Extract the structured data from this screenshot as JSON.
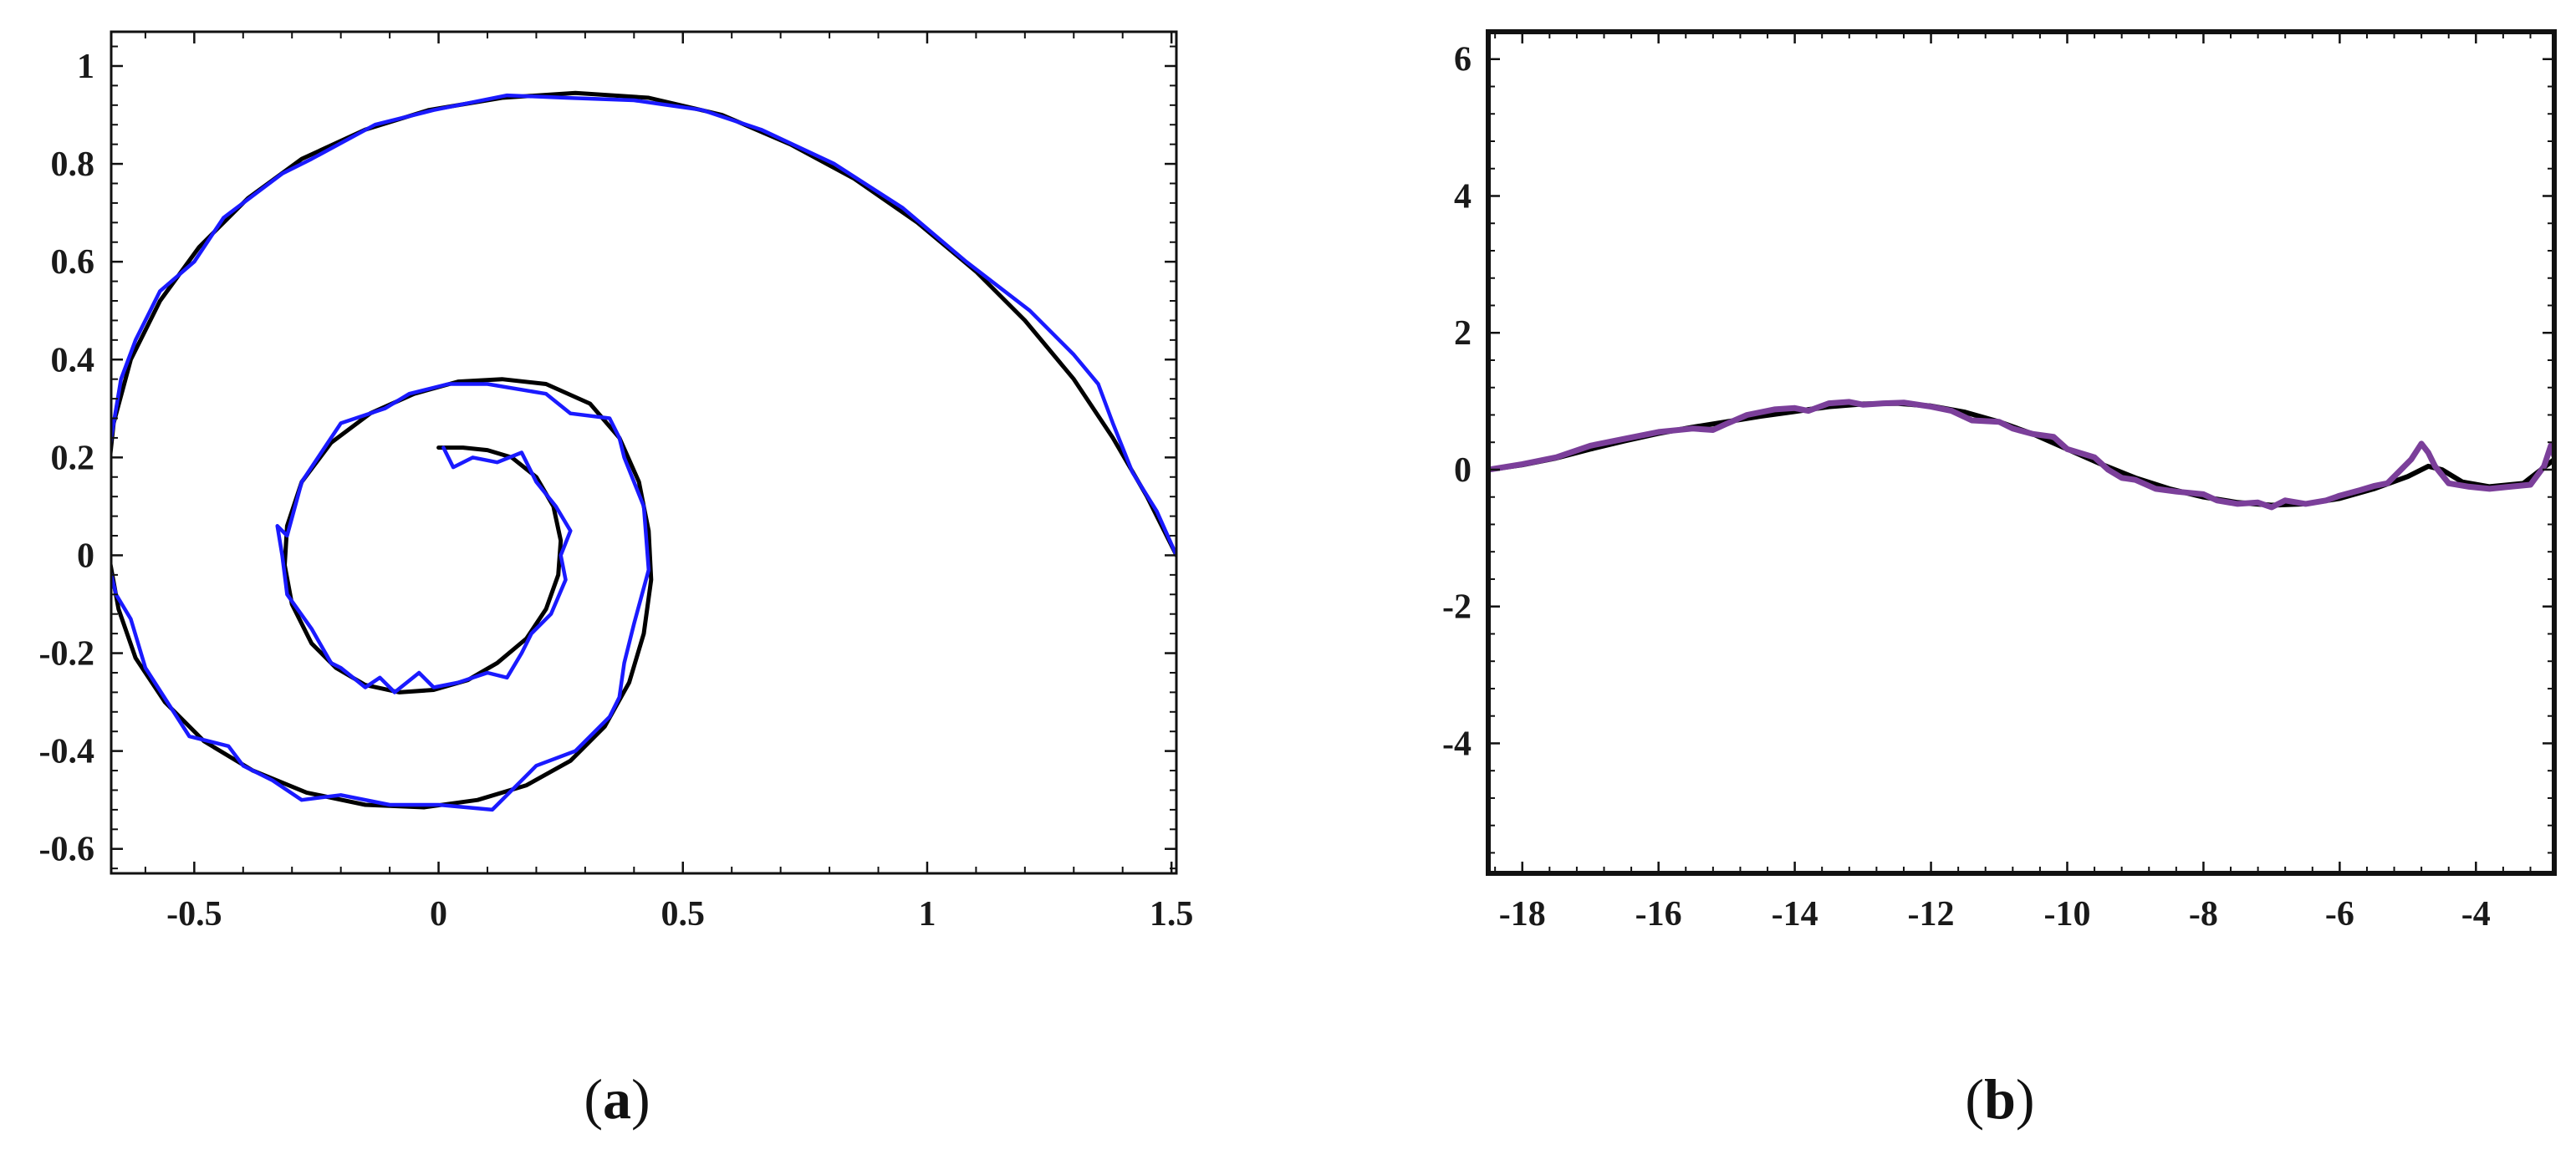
{
  "colors": {
    "axes": "#111111",
    "reference_curve": "#000000",
    "panel_a_noisy_curve": "#1a1aff",
    "panel_b_noisy_curve": "#7b3f9a",
    "background": "#ffffff"
  },
  "captions": {
    "a": "a",
    "b": "b",
    "open_paren": "(",
    "close_paren": ")"
  },
  "chart_data": [
    {
      "id": "a",
      "type": "line",
      "title": "",
      "xlabel": "",
      "ylabel": "",
      "xlim": [
        -0.67,
        1.51
      ],
      "ylim": [
        -0.65,
        1.07
      ],
      "x_ticks": [
        -0.5,
        0,
        0.5,
        1,
        1.5
      ],
      "x_tick_labels": [
        "-0.5",
        "0",
        "0.5",
        "1",
        "1.5"
      ],
      "y_ticks": [
        -0.6,
        -0.4,
        -0.2,
        0,
        0.2,
        0.4,
        0.6,
        0.8,
        1
      ],
      "y_tick_labels": [
        "-0.6",
        "-0.4",
        "-0.2",
        "0",
        "0.2",
        "0.4",
        "0.6",
        "0.8",
        "1"
      ],
      "grid": false,
      "legend": "none",
      "series": [
        {
          "style": "smooth black reference spiral",
          "points": [
            [
              1.51,
              0.0
            ],
            [
              1.45,
              0.12
            ],
            [
              1.38,
              0.24
            ],
            [
              1.3,
              0.36
            ],
            [
              1.2,
              0.48
            ],
            [
              1.1,
              0.58
            ],
            [
              0.98,
              0.68
            ],
            [
              0.85,
              0.77
            ],
            [
              0.72,
              0.84
            ],
            [
              0.58,
              0.9
            ],
            [
              0.43,
              0.935
            ],
            [
              0.28,
              0.945
            ],
            [
              0.13,
              0.935
            ],
            [
              -0.02,
              0.91
            ],
            [
              -0.15,
              0.87
            ],
            [
              -0.28,
              0.81
            ],
            [
              -0.39,
              0.73
            ],
            [
              -0.49,
              0.63
            ],
            [
              -0.57,
              0.52
            ],
            [
              -0.63,
              0.4
            ],
            [
              -0.665,
              0.27
            ],
            [
              -0.68,
              0.13
            ],
            [
              -0.675,
              0.0
            ],
            [
              -0.655,
              -0.11
            ],
            [
              -0.62,
              -0.21
            ],
            [
              -0.56,
              -0.3
            ],
            [
              -0.48,
              -0.38
            ],
            [
              -0.38,
              -0.44
            ],
            [
              -0.27,
              -0.485
            ],
            [
              -0.15,
              -0.51
            ],
            [
              -0.03,
              -0.515
            ],
            [
              0.08,
              -0.5
            ],
            [
              0.18,
              -0.47
            ],
            [
              0.27,
              -0.42
            ],
            [
              0.34,
              -0.35
            ],
            [
              0.39,
              -0.26
            ],
            [
              0.42,
              -0.16
            ],
            [
              0.435,
              -0.05
            ],
            [
              0.43,
              0.05
            ],
            [
              0.41,
              0.15
            ],
            [
              0.37,
              0.24
            ],
            [
              0.31,
              0.31
            ],
            [
              0.22,
              0.35
            ],
            [
              0.13,
              0.36
            ],
            [
              0.04,
              0.355
            ],
            [
              -0.05,
              0.33
            ],
            [
              -0.14,
              0.29
            ],
            [
              -0.22,
              0.23
            ],
            [
              -0.28,
              0.15
            ],
            [
              -0.31,
              0.06
            ],
            [
              -0.315,
              -0.02
            ],
            [
              -0.3,
              -0.1
            ],
            [
              -0.26,
              -0.18
            ],
            [
              -0.21,
              -0.23
            ],
            [
              -0.15,
              -0.265
            ],
            [
              -0.08,
              -0.28
            ],
            [
              -0.01,
              -0.275
            ],
            [
              0.06,
              -0.255
            ],
            [
              0.12,
              -0.22
            ],
            [
              0.18,
              -0.17
            ],
            [
              0.22,
              -0.11
            ],
            [
              0.245,
              -0.04
            ],
            [
              0.25,
              0.03
            ],
            [
              0.235,
              0.1
            ],
            [
              0.2,
              0.16
            ],
            [
              0.15,
              0.2
            ],
            [
              0.1,
              0.215
            ],
            [
              0.05,
              0.22
            ],
            [
              0.0,
              0.22
            ]
          ]
        },
        {
          "style": "noisy blue approximation",
          "points": [
            [
              1.51,
              0.0
            ],
            [
              1.47,
              0.09
            ],
            [
              1.42,
              0.17
            ],
            [
              1.38,
              0.27
            ],
            [
              1.35,
              0.35
            ],
            [
              1.3,
              0.41
            ],
            [
              1.21,
              0.5
            ],
            [
              1.08,
              0.6
            ],
            [
              0.95,
              0.71
            ],
            [
              0.81,
              0.8
            ],
            [
              0.66,
              0.87
            ],
            [
              0.54,
              0.91
            ],
            [
              0.4,
              0.93
            ],
            [
              0.26,
              0.935
            ],
            [
              0.14,
              0.94
            ],
            [
              -0.01,
              0.91
            ],
            [
              -0.13,
              0.88
            ],
            [
              -0.26,
              0.81
            ],
            [
              -0.32,
              0.78
            ],
            [
              -0.44,
              0.69
            ],
            [
              -0.5,
              0.6
            ],
            [
              -0.57,
              0.54
            ],
            [
              -0.62,
              0.44
            ],
            [
              -0.65,
              0.36
            ],
            [
              -0.67,
              0.24
            ],
            [
              -0.68,
              0.15
            ],
            [
              -0.68,
              0.0
            ],
            [
              -0.66,
              -0.08
            ],
            [
              -0.63,
              -0.13
            ],
            [
              -0.6,
              -0.23
            ],
            [
              -0.51,
              -0.37
            ],
            [
              -0.43,
              -0.39
            ],
            [
              -0.4,
              -0.43
            ],
            [
              -0.34,
              -0.46
            ],
            [
              -0.28,
              -0.5
            ],
            [
              -0.2,
              -0.49
            ],
            [
              -0.1,
              -0.51
            ],
            [
              0.0,
              -0.51
            ],
            [
              0.11,
              -0.52
            ],
            [
              0.17,
              -0.46
            ],
            [
              0.2,
              -0.43
            ],
            [
              0.28,
              -0.4
            ],
            [
              0.32,
              -0.36
            ],
            [
              0.35,
              -0.33
            ],
            [
              0.37,
              -0.29
            ],
            [
              0.38,
              -0.22
            ],
            [
              0.4,
              -0.14
            ],
            [
              0.43,
              -0.03
            ],
            [
              0.42,
              0.1
            ],
            [
              0.38,
              0.2
            ],
            [
              0.37,
              0.24
            ],
            [
              0.35,
              0.28
            ],
            [
              0.27,
              0.29
            ],
            [
              0.22,
              0.33
            ],
            [
              0.1,
              0.35
            ],
            [
              0.02,
              0.35
            ],
            [
              -0.06,
              0.33
            ],
            [
              -0.11,
              0.3
            ],
            [
              -0.2,
              0.27
            ],
            [
              -0.28,
              0.15
            ],
            [
              -0.31,
              0.04
            ],
            [
              -0.33,
              0.06
            ],
            [
              -0.32,
              0.0
            ],
            [
              -0.31,
              -0.08
            ],
            [
              -0.26,
              -0.15
            ],
            [
              -0.22,
              -0.22
            ],
            [
              -0.2,
              -0.23
            ],
            [
              -0.15,
              -0.27
            ],
            [
              -0.12,
              -0.25
            ],
            [
              -0.09,
              -0.28
            ],
            [
              -0.04,
              -0.24
            ],
            [
              -0.01,
              -0.27
            ],
            [
              0.04,
              -0.26
            ],
            [
              0.1,
              -0.24
            ],
            [
              0.14,
              -0.25
            ],
            [
              0.17,
              -0.2
            ],
            [
              0.19,
              -0.16
            ],
            [
              0.23,
              -0.12
            ],
            [
              0.26,
              -0.05
            ],
            [
              0.25,
              0.0
            ],
            [
              0.27,
              0.05
            ],
            [
              0.24,
              0.1
            ],
            [
              0.2,
              0.15
            ],
            [
              0.17,
              0.21
            ],
            [
              0.12,
              0.19
            ],
            [
              0.07,
              0.2
            ],
            [
              0.03,
              0.18
            ],
            [
              0.01,
              0.22
            ]
          ]
        }
      ]
    },
    {
      "id": "b",
      "type": "line",
      "title": "",
      "xlabel": "",
      "ylabel": "",
      "xlim": [
        -18.5,
        -2.85
      ],
      "ylim": [
        -5.9,
        6.4
      ],
      "x_ticks": [
        -18,
        -16,
        -14,
        -12,
        -10,
        -8,
        -6,
        -4
      ],
      "x_tick_labels": [
        "-18",
        "-16",
        "-14",
        "-12",
        "-10",
        "-8",
        "-6",
        "-4"
      ],
      "y_ticks": [
        -4,
        -2,
        0,
        2,
        4,
        6
      ],
      "y_tick_labels": [
        "-4",
        "-2",
        "0",
        "2",
        "4",
        "6"
      ],
      "grid": false,
      "legend": "none",
      "series": [
        {
          "style": "smooth black reference curve",
          "points": [
            [
              -18.5,
              0.0
            ],
            [
              -18.0,
              0.07
            ],
            [
              -17.5,
              0.17
            ],
            [
              -17.0,
              0.3
            ],
            [
              -16.5,
              0.42
            ],
            [
              -16.0,
              0.53
            ],
            [
              -15.5,
              0.62
            ],
            [
              -15.0,
              0.7
            ],
            [
              -14.5,
              0.78
            ],
            [
              -14.0,
              0.85
            ],
            [
              -13.5,
              0.92
            ],
            [
              -13.0,
              0.96
            ],
            [
              -12.5,
              0.97
            ],
            [
              -12.0,
              0.93
            ],
            [
              -11.5,
              0.84
            ],
            [
              -11.0,
              0.7
            ],
            [
              -10.5,
              0.52
            ],
            [
              -10.0,
              0.3
            ],
            [
              -9.5,
              0.08
            ],
            [
              -9.0,
              -0.12
            ],
            [
              -8.5,
              -0.28
            ],
            [
              -8.0,
              -0.4
            ],
            [
              -7.5,
              -0.48
            ],
            [
              -7.0,
              -0.52
            ],
            [
              -6.5,
              -0.5
            ],
            [
              -6.0,
              -0.42
            ],
            [
              -5.5,
              -0.28
            ],
            [
              -5.0,
              -0.1
            ],
            [
              -4.7,
              0.05
            ],
            [
              -4.5,
              0.0
            ],
            [
              -4.2,
              -0.18
            ],
            [
              -3.8,
              -0.25
            ],
            [
              -3.3,
              -0.2
            ],
            [
              -2.85,
              0.15
            ]
          ]
        },
        {
          "style": "noisy purple approximation",
          "points": [
            [
              -18.5,
              0.0
            ],
            [
              -18.0,
              0.08
            ],
            [
              -17.5,
              0.18
            ],
            [
              -17.0,
              0.35
            ],
            [
              -16.5,
              0.45
            ],
            [
              -16.0,
              0.55
            ],
            [
              -15.5,
              0.6
            ],
            [
              -15.2,
              0.58
            ],
            [
              -15.0,
              0.67
            ],
            [
              -14.7,
              0.8
            ],
            [
              -14.3,
              0.88
            ],
            [
              -14.0,
              0.9
            ],
            [
              -13.8,
              0.86
            ],
            [
              -13.5,
              0.97
            ],
            [
              -13.2,
              0.99
            ],
            [
              -13.0,
              0.95
            ],
            [
              -12.7,
              0.97
            ],
            [
              -12.4,
              0.98
            ],
            [
              -12.0,
              0.92
            ],
            [
              -11.7,
              0.86
            ],
            [
              -11.4,
              0.72
            ],
            [
              -11.0,
              0.7
            ],
            [
              -10.8,
              0.6
            ],
            [
              -10.5,
              0.52
            ],
            [
              -10.2,
              0.48
            ],
            [
              -10.0,
              0.3
            ],
            [
              -9.6,
              0.18
            ],
            [
              -9.4,
              0.0
            ],
            [
              -9.2,
              -0.12
            ],
            [
              -9.0,
              -0.15
            ],
            [
              -8.7,
              -0.28
            ],
            [
              -8.4,
              -0.32
            ],
            [
              -8.0,
              -0.36
            ],
            [
              -7.8,
              -0.45
            ],
            [
              -7.5,
              -0.5
            ],
            [
              -7.2,
              -0.48
            ],
            [
              -7.0,
              -0.55
            ],
            [
              -6.8,
              -0.45
            ],
            [
              -6.5,
              -0.5
            ],
            [
              -6.2,
              -0.45
            ],
            [
              -6.0,
              -0.38
            ],
            [
              -5.7,
              -0.3
            ],
            [
              -5.5,
              -0.24
            ],
            [
              -5.3,
              -0.2
            ],
            [
              -5.1,
              0.0
            ],
            [
              -4.95,
              0.15
            ],
            [
              -4.8,
              0.38
            ],
            [
              -4.7,
              0.25
            ],
            [
              -4.6,
              0.05
            ],
            [
              -4.4,
              -0.2
            ],
            [
              -4.1,
              -0.25
            ],
            [
              -3.8,
              -0.28
            ],
            [
              -3.5,
              -0.25
            ],
            [
              -3.2,
              -0.22
            ],
            [
              -3.0,
              0.05
            ],
            [
              -2.9,
              0.35
            ],
            [
              -2.85,
              0.2
            ]
          ]
        }
      ]
    }
  ]
}
